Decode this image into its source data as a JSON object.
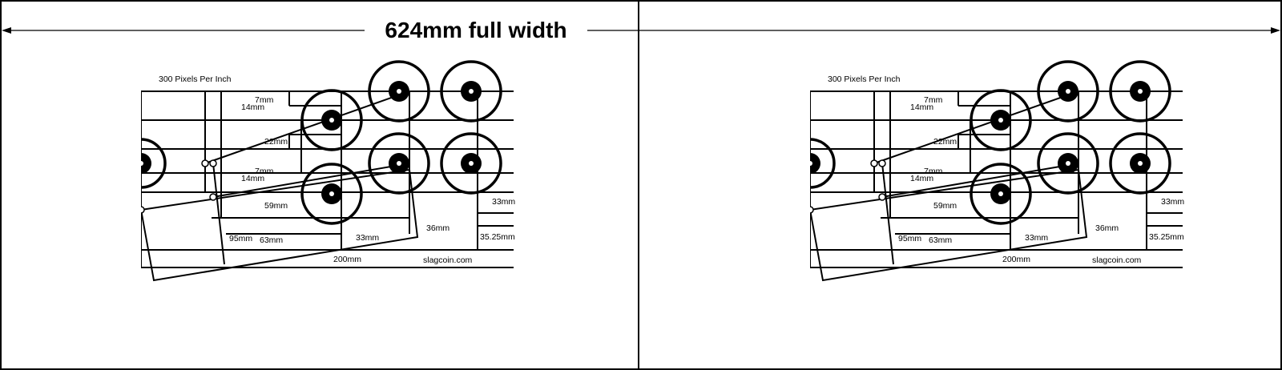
{
  "header": {
    "title": "624mm full width"
  },
  "panel": {
    "ppi_label": "300 Pixels Per Inch",
    "site_label": "slagcoin.com",
    "measurements": {
      "m7_top": "7mm",
      "m14_top": "14mm",
      "m22": "22mm",
      "m7_mid": "7mm",
      "m14_mid": "14mm",
      "m59": "59mm",
      "m95": "95mm",
      "m63": "63mm",
      "m33_bottom": "33mm",
      "m36": "36mm",
      "m33_right": "33mm",
      "m35_25": "35.25mm",
      "m200": "200mm"
    }
  },
  "colors": {
    "line": "#000000",
    "frame": "#000000",
    "background": "#ffffff"
  }
}
